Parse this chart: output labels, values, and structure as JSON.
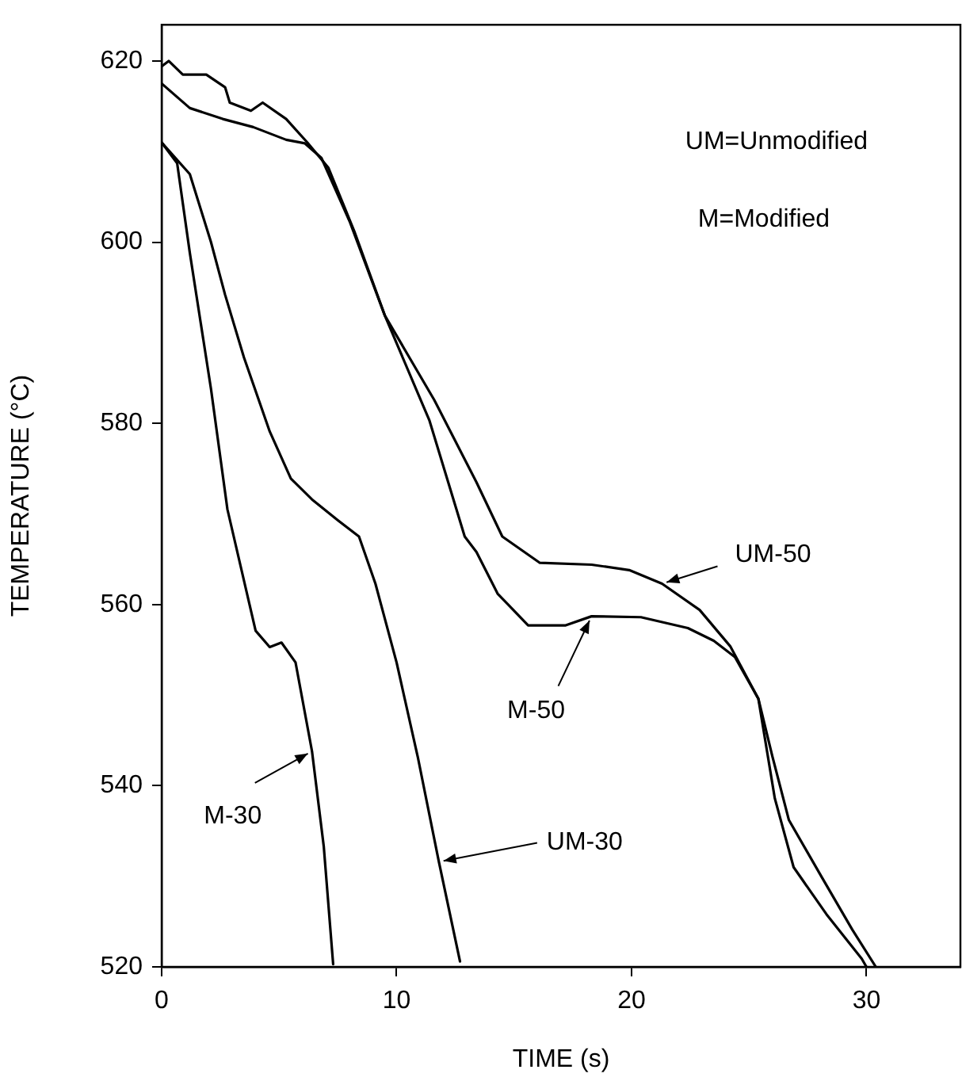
{
  "chart_data": {
    "type": "line",
    "xlabel": "TIME (s)",
    "ylabel": "TEMPERATURE (°C)",
    "xlim": [
      0,
      34
    ],
    "xticks": [
      0,
      10,
      20,
      30
    ],
    "ylim": [
      520,
      624
    ],
    "yticks": [
      520,
      540,
      560,
      580,
      600,
      620
    ],
    "grid": false,
    "legend": false,
    "marker": "none",
    "line_style": "solid",
    "series": [
      {
        "color": "#000000",
        "x": [
          0,
          0.3,
          0.9,
          1.9,
          2.7,
          2.9,
          3.8,
          4.3,
          5.3,
          6.2,
          7.1,
          8.2,
          9.5,
          11.6,
          13.4,
          14.5,
          16.1,
          18.3,
          19.9,
          21.3,
          22.9,
          24.2,
          25.4,
          26.0,
          26.7,
          28.1,
          29.4,
          30.4
        ],
        "values": [
          619.4,
          620,
          618.5,
          618.5,
          617.1,
          615.4,
          614.5,
          615.4,
          613.6,
          611.0,
          608.2,
          601.2,
          591.9,
          582.6,
          573.5,
          567.5,
          564.6,
          564.4,
          563.8,
          562.3,
          559.4,
          555.4,
          549.6,
          543.2,
          536.2,
          529.9,
          524.1,
          520
        ]
      },
      {
        "color": "#000000",
        "x": [
          0,
          1.2,
          2.6,
          3.9,
          5.3,
          6.1,
          6.8,
          8.0,
          9.5,
          11.4,
          12.9,
          13.4,
          14.3,
          15.6,
          17.2,
          18.3,
          20.4,
          22.4,
          23.5,
          24.4,
          25.4,
          26.1,
          26.9,
          28.3,
          29.8,
          30.0
        ],
        "values": [
          617.5,
          614.8,
          613.6,
          612.7,
          611.3,
          610.9,
          609.3,
          602.3,
          591.9,
          580.3,
          567.5,
          565.8,
          561.2,
          557.7,
          557.7,
          558.7,
          558.6,
          557.4,
          556.0,
          554.2,
          549.6,
          538.6,
          531.0,
          525.8,
          520.9,
          520
        ]
      },
      {
        "color": "#000000",
        "x": [
          0,
          0.66,
          1.2,
          2.1,
          2.8,
          4.0,
          4.6,
          5.1,
          5.7,
          6.4,
          6.9,
          7.3
        ],
        "values": [
          611,
          608.7,
          598.8,
          583.8,
          570.5,
          557.1,
          555.3,
          555.8,
          553.6,
          543.8,
          533.3,
          520.3
        ]
      },
      {
        "color": "#000000",
        "x": [
          0,
          1.2,
          2.1,
          2.7,
          3.5,
          4.6,
          5.5,
          6.4,
          7.5,
          8.4,
          9.1,
          10.0,
          10.9,
          11.8,
          12.7
        ],
        "values": [
          611,
          607.5,
          600,
          594.2,
          587.3,
          579.1,
          573.9,
          571.6,
          569.3,
          567.5,
          562.3,
          553.6,
          543.2,
          531.6,
          520.6
        ]
      }
    ],
    "annotations": [
      "UM=Unmodified",
      "M=Modified",
      {
        "text": "UM-50",
        "x": 21.3,
        "y": 562.3
      },
      {
        "text": "M-50",
        "x": 18.3,
        "y": 558.7
      },
      {
        "text": "M-30",
        "x": 6.4,
        "y": 543.8
      },
      {
        "text": "UM-30",
        "x": 11.8,
        "y": 531.6
      }
    ]
  }
}
